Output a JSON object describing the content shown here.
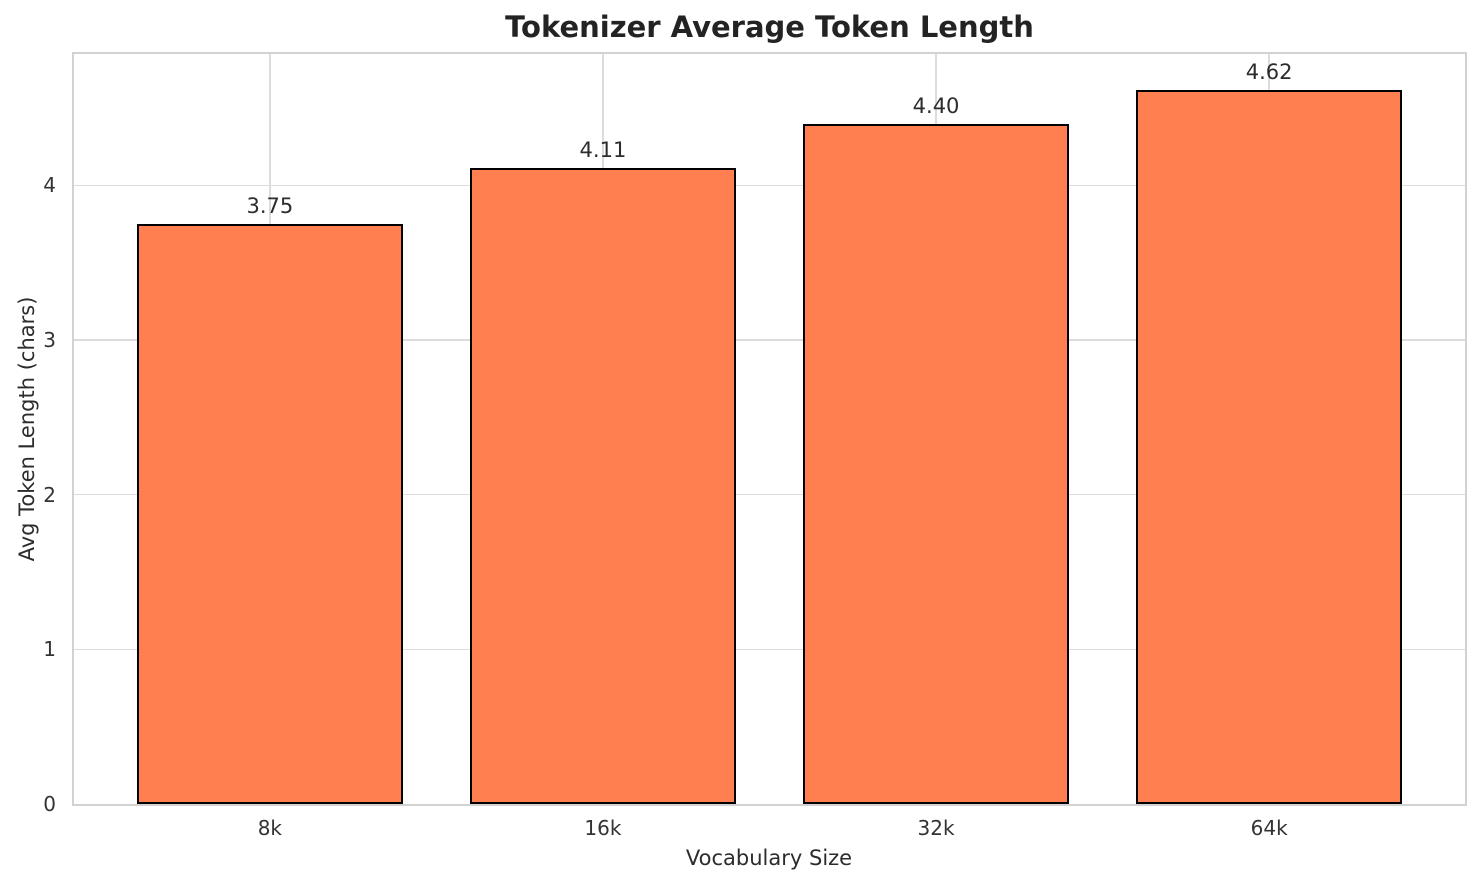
{
  "chart_data": {
    "type": "bar",
    "title": "Tokenizer Average Token Length",
    "xlabel": "Vocabulary Size",
    "ylabel": "Avg Token Length (chars)",
    "categories": [
      "8k",
      "16k",
      "32k",
      "64k"
    ],
    "values": [
      3.75,
      4.11,
      4.4,
      4.62
    ],
    "value_labels": [
      "3.75",
      "4.11",
      "4.40",
      "4.62"
    ],
    "yticks": [
      0,
      1,
      2,
      3,
      4
    ],
    "ytick_labels": [
      "0",
      "1",
      "2",
      "3",
      "4"
    ],
    "ylim": [
      0,
      4.85
    ],
    "grid": true,
    "legend": false,
    "colors": {
      "bar_fill": "#FF7F50",
      "bar_edge": "#000000",
      "grid": "#dcdcdc",
      "spine": "#d2d2d2",
      "title_text": "#232323",
      "tick_text": "#333333",
      "label_text": "#2c2c2c",
      "background": "#ffffff"
    }
  }
}
